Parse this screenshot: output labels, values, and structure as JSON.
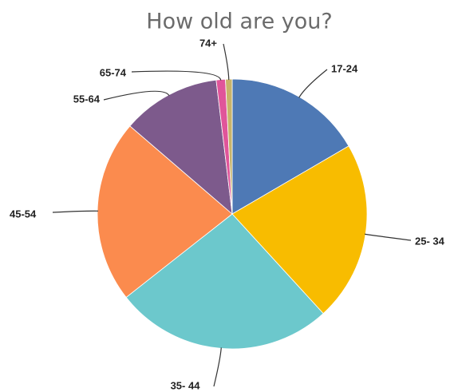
{
  "chart_data": {
    "type": "pie",
    "title": "How old are you?",
    "categories": [
      "17-24",
      "25- 34",
      "35- 44",
      "45-54",
      "55-64",
      "65-74",
      "74+"
    ],
    "values": [
      16.6,
      21.6,
      26.2,
      21.9,
      11.8,
      1.1,
      0.8
    ],
    "colors": [
      "#4e79b5",
      "#f8bc00",
      "#6cc8cc",
      "#fb8b4e",
      "#7d5a8c",
      "#e0559a",
      "#c8b46a"
    ]
  }
}
